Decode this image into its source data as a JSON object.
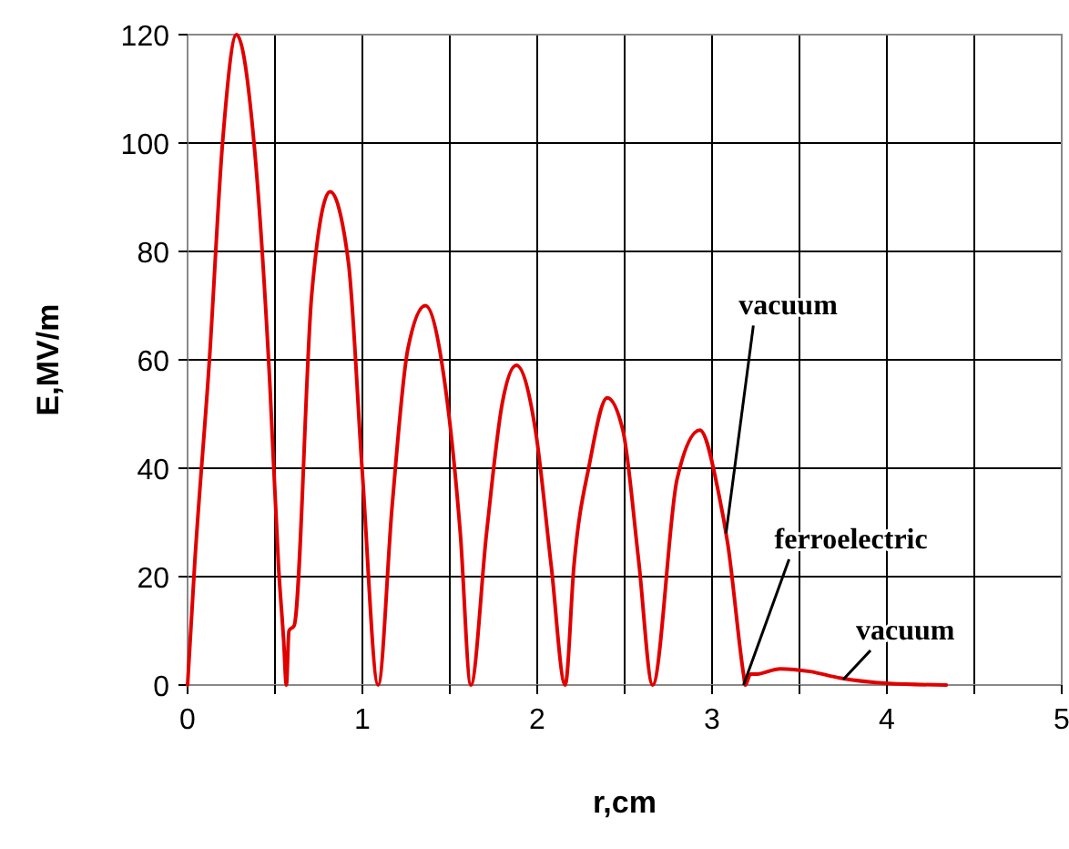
{
  "chart_data": {
    "type": "line",
    "xlabel": "r,cm",
    "ylabel": "E,MV/m",
    "xlim": [
      0,
      5
    ],
    "ylim": [
      0,
      120
    ],
    "xticks": [
      0,
      {
        "value": 0.5,
        "label": null
      },
      1,
      {
        "value": 1.5,
        "label": null
      },
      2,
      {
        "value": 2.5,
        "label": null
      },
      3,
      {
        "value": 3.5,
        "label": null
      },
      4,
      {
        "value": 4.5,
        "label": null
      },
      5
    ],
    "yticks": [
      0,
      20,
      40,
      60,
      80,
      100,
      120
    ],
    "grid": true,
    "marker": "none",
    "line_style": "solid",
    "series": [
      {
        "color": "#e00000",
        "x": [
          0,
          0.04,
          0.125,
          0.2,
          0.28,
          0.38,
          0.47,
          0.52,
          0.55,
          0.565,
          0.58,
          0.61,
          0.71,
          0.815,
          0.92,
          1.0,
          1.09,
          1.17,
          1.26,
          1.36,
          1.47,
          1.56,
          1.62,
          1.71,
          1.8,
          1.88,
          1.99,
          2.08,
          2.16,
          2.21,
          2.3,
          2.4,
          2.49,
          2.58,
          2.66,
          2.8,
          2.93,
          3.04,
          3.09,
          3.18,
          3.19,
          3.22,
          3.25,
          3.39,
          3.56,
          3.73,
          4.01,
          4.34
        ],
        "values": [
          0,
          22,
          60,
          100,
          120,
          100,
          56,
          22,
          8,
          0,
          10,
          11,
          72,
          91,
          78,
          39,
          0,
          33,
          62,
          70,
          56,
          28,
          0,
          28,
          52,
          59,
          47,
          22,
          0,
          22,
          41,
          53,
          47,
          23,
          0,
          38,
          47,
          35,
          26,
          2,
          0,
          2,
          2,
          3,
          2.5,
          1.3,
          0.3,
          0
        ]
      }
    ],
    "annotations": [
      {
        "text": "vacuum",
        "x": 3.08,
        "y": 28
      },
      {
        "text": "ferroelectric",
        "x": 3.18,
        "y": 0
      },
      {
        "text": "vacuum",
        "x": 3.75,
        "y": 1
      }
    ]
  }
}
